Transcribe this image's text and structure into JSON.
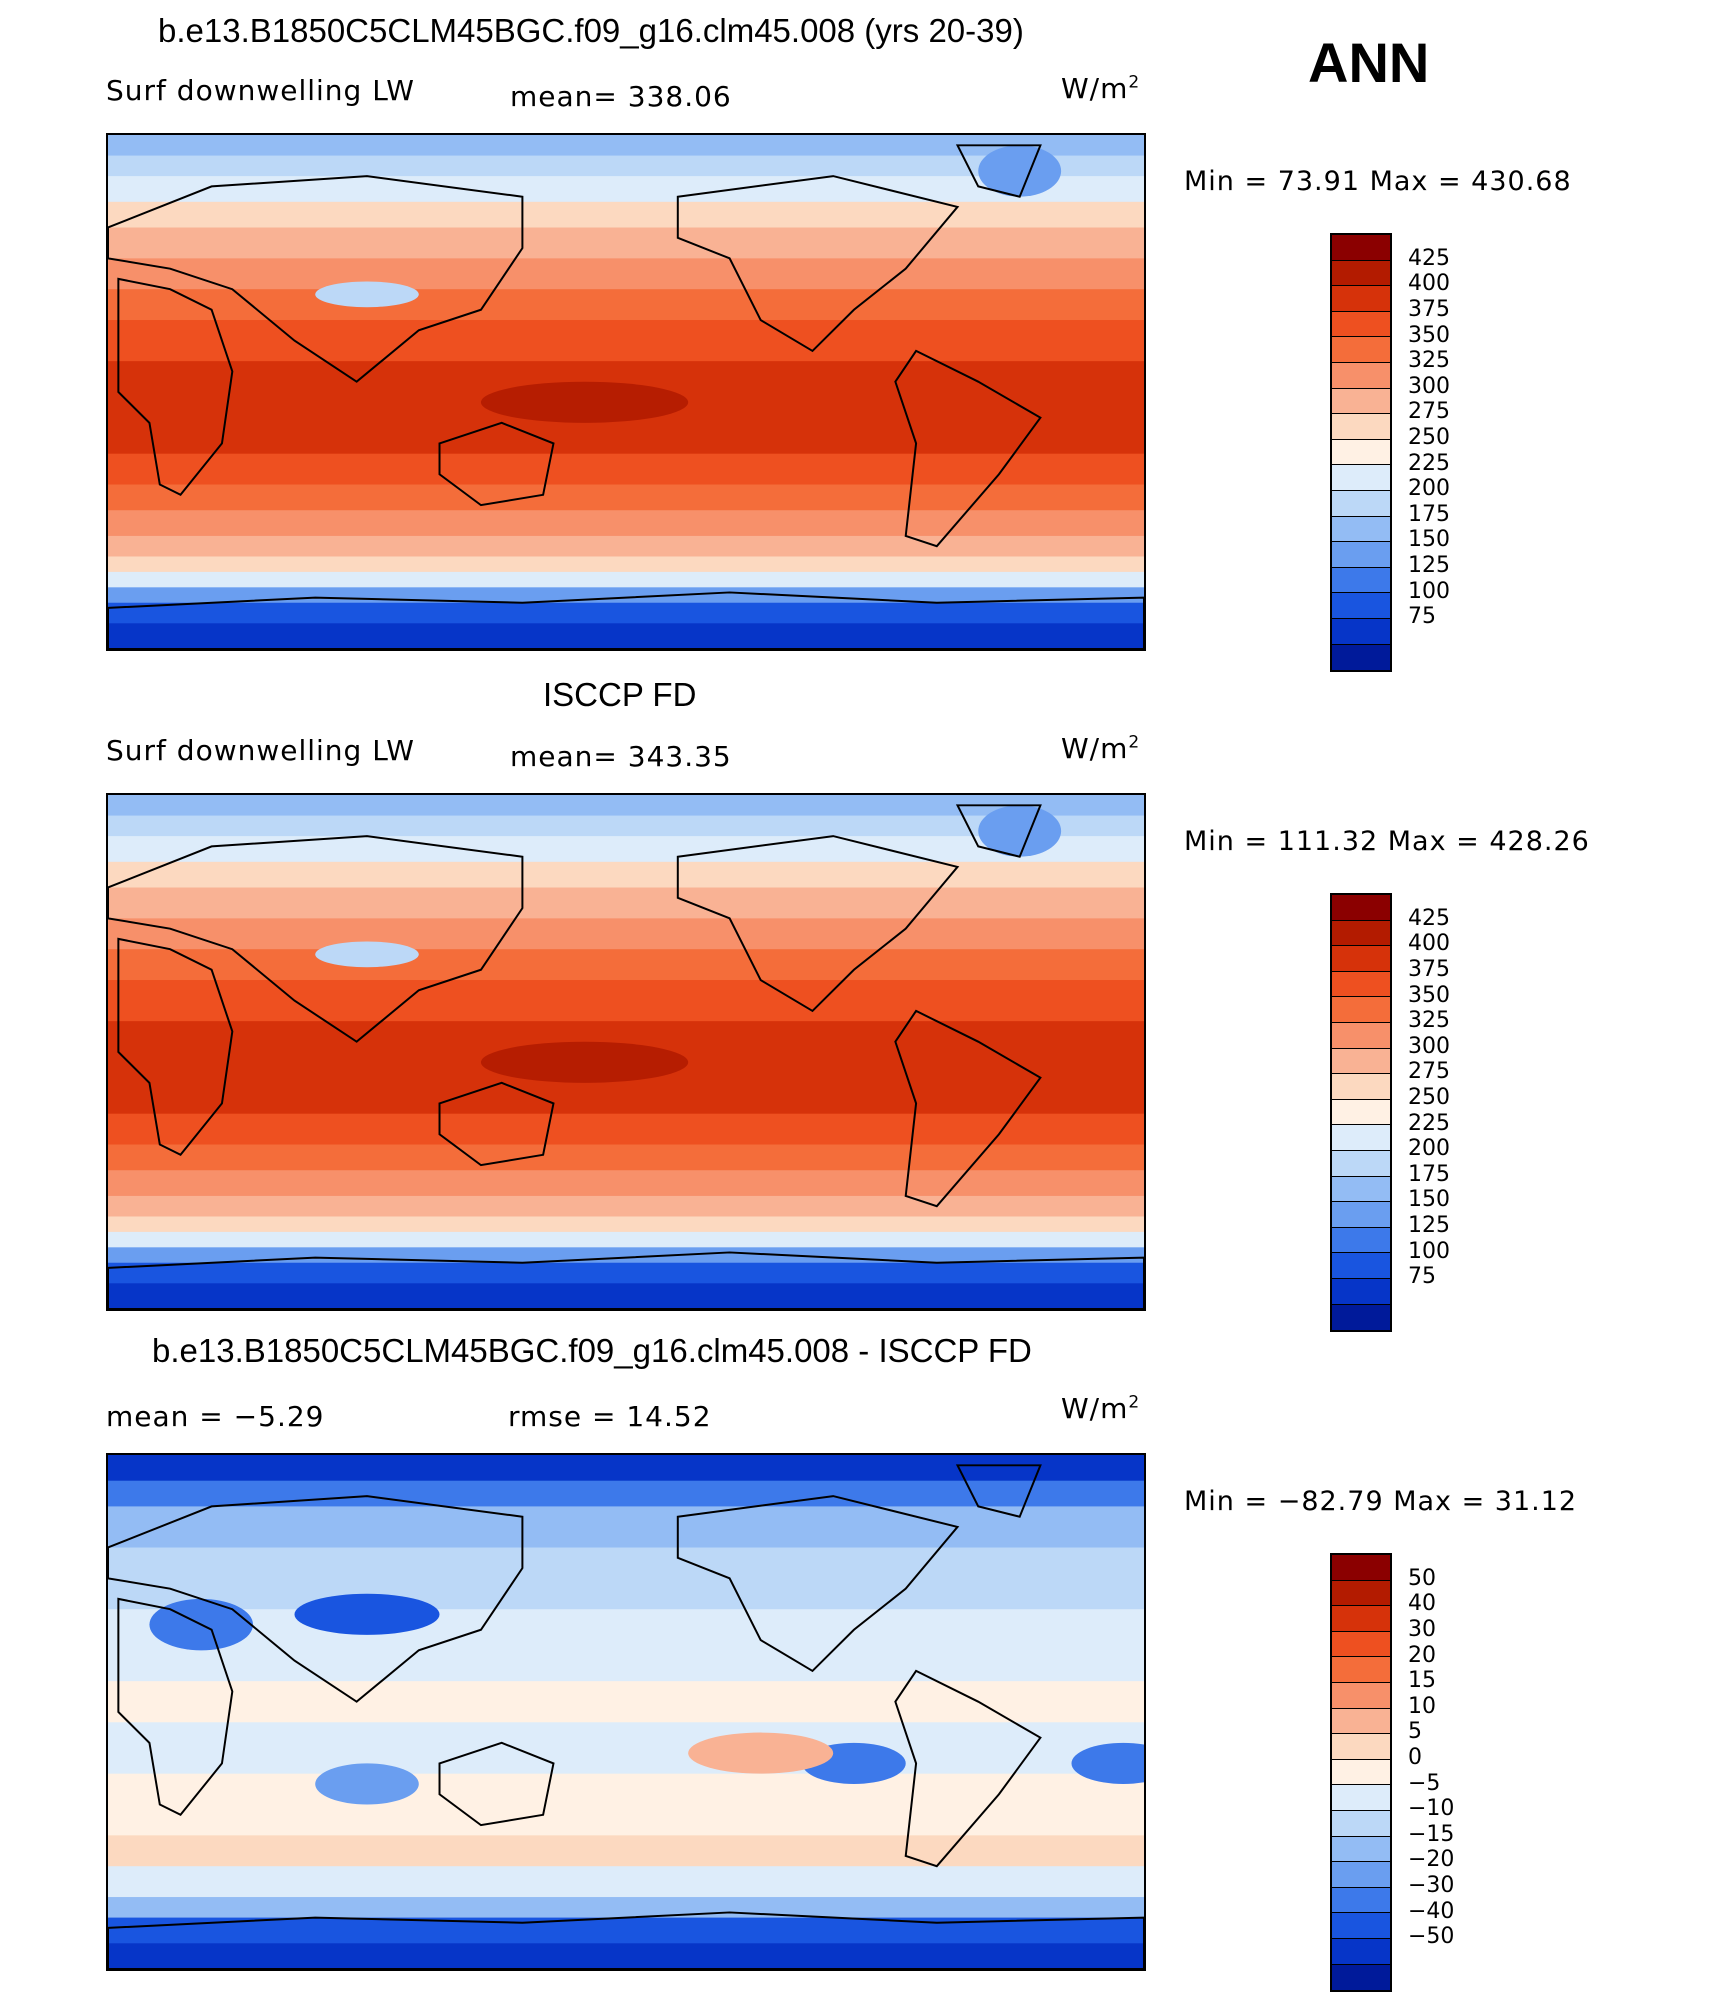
{
  "season": "ANN",
  "panels": [
    {
      "id": "model",
      "title": "b.e13.B1850C5CLM45BGC.f09_g16.clm45.008 (yrs 20-39)",
      "left_label": "Surf downwelling LW",
      "mid_label": "mean= 338.06",
      "right_label": "W/m",
      "right_sup": "2",
      "minmax": "Min =   73.91  Max  =  430.68",
      "colorbar_levels": [
        "425",
        "400",
        "375",
        "350",
        "325",
        "300",
        "275",
        "250",
        "225",
        "200",
        "175",
        "150",
        "125",
        "100",
        "75"
      ],
      "colorbar_colors": [
        "#8b0000",
        "#b31b00",
        "#d6320a",
        "#ee5020",
        "#f46d3a",
        "#f7906a",
        "#f9b294",
        "#fcd9c0",
        "#fff1e4",
        "#ddecfa",
        "#bcd8f7",
        "#93bcf4",
        "#6a9ef0",
        "#3d79ea",
        "#1955e0",
        "#0635c8",
        "#001a9a"
      ],
      "map_type": "absolute"
    },
    {
      "id": "obs",
      "title": "ISCCP FD",
      "left_label": "Surf downwelling LW",
      "mid_label": "mean= 343.35",
      "right_label": "W/m",
      "right_sup": "2",
      "minmax": "Min  =  111.32  Max  =  428.26",
      "colorbar_levels": [
        "425",
        "400",
        "375",
        "350",
        "325",
        "300",
        "275",
        "250",
        "225",
        "200",
        "175",
        "150",
        "125",
        "100",
        "75"
      ],
      "colorbar_colors": [
        "#8b0000",
        "#b31b00",
        "#d6320a",
        "#ee5020",
        "#f46d3a",
        "#f7906a",
        "#f9b294",
        "#fcd9c0",
        "#fff1e4",
        "#ddecfa",
        "#bcd8f7",
        "#93bcf4",
        "#6a9ef0",
        "#3d79ea",
        "#1955e0",
        "#0635c8",
        "#001a9a"
      ],
      "map_type": "absolute"
    },
    {
      "id": "diff",
      "title": "b.e13.B1850C5CLM45BGC.f09_g16.clm45.008 - ISCCP FD",
      "left_label": "mean  =    −5.29",
      "mid_label": "rmse  =    14.52",
      "right_label": "W/m",
      "right_sup": "2",
      "minmax": "Min  =  −82.79  Max  =    31.12",
      "colorbar_levels": [
        "50",
        "40",
        "30",
        "20",
        "15",
        "10",
        "5",
        "0",
        "−5",
        "−10",
        "−15",
        "−20",
        "−30",
        "−40",
        "−50"
      ],
      "colorbar_colors": [
        "#8b0000",
        "#b31b00",
        "#d6320a",
        "#ee5020",
        "#f46d3a",
        "#f7906a",
        "#f9b294",
        "#fcd9c0",
        "#fff1e4",
        "#ddecfa",
        "#bcd8f7",
        "#93bcf4",
        "#6a9ef0",
        "#3d79ea",
        "#1955e0",
        "#0635c8",
        "#001a9a"
      ],
      "map_type": "difference"
    }
  ]
}
